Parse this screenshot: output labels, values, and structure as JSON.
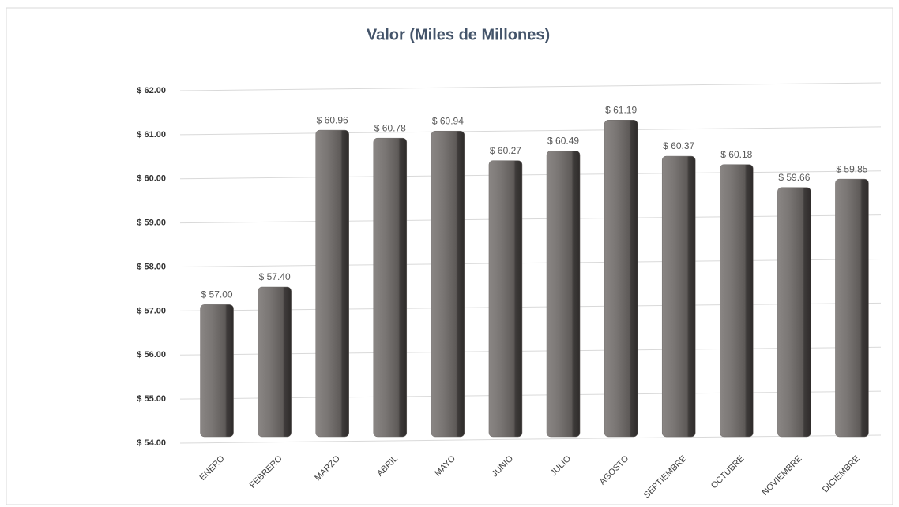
{
  "chart_data": {
    "type": "bar",
    "title": "Valor (Miles de Millones)",
    "categories": [
      "ENERO",
      "FEBRERO",
      "MARZO",
      "ABRIL",
      "MAYO",
      "JUNIO",
      "JULIO",
      "AGOSTO",
      "SEPTIEMBRE",
      "OCTUBRE",
      "NOVIEMBRE",
      "DICIEMBRE"
    ],
    "values": [
      57.0,
      57.4,
      60.96,
      60.78,
      60.94,
      60.27,
      60.49,
      61.19,
      60.37,
      60.18,
      59.66,
      59.85
    ],
    "value_labels": [
      "$ 57.00",
      "$ 57.40",
      "$ 60.96",
      "$ 60.78",
      "$ 60.94",
      "$ 60.27",
      "$ 60.49",
      "$ 61.19",
      "$ 60.37",
      "$ 60.18",
      "$ 59.66",
      "$ 59.85"
    ],
    "color": "#6e6a68",
    "ylim": [
      54,
      62
    ],
    "yticks": [
      {
        "value": 54,
        "label": "$ 54.00"
      },
      {
        "value": 55,
        "label": "$ 55.00"
      },
      {
        "value": 56,
        "label": "$ 56.00"
      },
      {
        "value": 57,
        "label": "$ 57.00"
      },
      {
        "value": 58,
        "label": "$ 58.00"
      },
      {
        "value": 59,
        "label": "$ 59.00"
      },
      {
        "value": 60,
        "label": "$ 60.00"
      },
      {
        "value": 61,
        "label": "$ 61.00"
      },
      {
        "value": 62,
        "label": "$ 62.00"
      }
    ],
    "grid": true
  }
}
